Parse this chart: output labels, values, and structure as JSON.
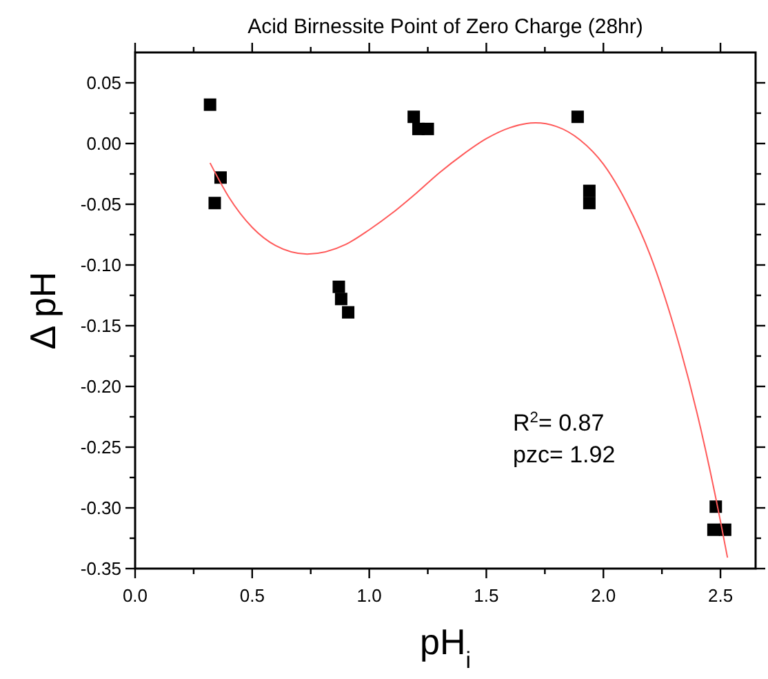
{
  "chart_data": {
    "type": "scatter",
    "title": "Acid Birnessite Point of Zero Charge (28hr)",
    "xlabel": "pH$_{i}$",
    "ylabel": "Δ pH",
    "grid": false,
    "xlim": [
      0,
      2.65
    ],
    "ylim": [
      -0.35,
      0.075
    ],
    "xticks": [
      {
        "value": 0,
        "label": "0.0"
      },
      {
        "value": 0.25,
        "label": null
      },
      {
        "value": 0.5,
        "label": "0.5"
      },
      {
        "value": 0.75,
        "label": null
      },
      {
        "value": 1,
        "label": "1.0"
      },
      {
        "value": 1.25,
        "label": null
      },
      {
        "value": 1.5,
        "label": "1.5"
      },
      {
        "value": 1.75,
        "label": null
      },
      {
        "value": 2,
        "label": "2.0"
      },
      {
        "value": 2.25,
        "label": null
      },
      {
        "value": 2.5,
        "label": "2.5"
      }
    ],
    "yticks": [
      {
        "value": -0.35,
        "label": "-0.35"
      },
      {
        "value": -0.325,
        "label": null
      },
      {
        "value": -0.3,
        "label": "-0.30"
      },
      {
        "value": -0.275,
        "label": null
      },
      {
        "value": -0.25,
        "label": "-0.25"
      },
      {
        "value": -0.225,
        "label": null
      },
      {
        "value": -0.2,
        "label": "-0.20"
      },
      {
        "value": -0.175,
        "label": null
      },
      {
        "value": -0.15,
        "label": "-0.15"
      },
      {
        "value": -0.125,
        "label": null
      },
      {
        "value": -0.1,
        "label": "-0.10"
      },
      {
        "value": -0.075,
        "label": null
      },
      {
        "value": -0.05,
        "label": "-0.05"
      },
      {
        "value": -0.025,
        "label": null
      },
      {
        "value": 0,
        "label": "0.00"
      },
      {
        "value": 0.025,
        "label": null
      },
      {
        "value": 0.05,
        "label": "0.05"
      }
    ],
    "annotations": [
      "R$^{2}$= 0.87",
      "pzc= 1.92"
    ],
    "series": [
      {
        "color": "#000000",
        "marker": "square",
        "x": [
          0.32,
          0.365,
          0.34,
          0.87,
          0.88,
          0.91,
          1.19,
          1.21,
          1.25,
          1.89,
          1.94,
          1.94,
          2.48,
          2.47,
          2.52
        ],
        "values": [
          0.032,
          -0.028,
          -0.049,
          -0.118,
          -0.128,
          -0.139,
          0.022,
          0.012,
          0.012,
          0.022,
          -0.039,
          -0.049,
          -0.299,
          -0.318,
          -0.318
        ]
      },
      {
        "type": "line",
        "color": "#ff5a5a",
        "marker": "none",
        "line_style": "solid",
        "x": [
          0.32,
          0.4,
          0.5,
          0.6,
          0.735,
          0.9,
          1.0,
          1.1,
          1.2,
          1.3,
          1.4,
          1.5,
          1.6,
          1.71,
          1.8,
          1.9,
          2.0,
          2.1,
          2.2,
          2.3,
          2.4,
          2.5,
          2.53
        ],
        "values": [
          -0.016,
          -0.044,
          -0.069,
          -0.084,
          -0.091,
          -0.083,
          -0.071,
          -0.057,
          -0.041,
          -0.024,
          -0.009,
          0.004,
          0.013,
          0.017,
          0.014,
          0.003,
          -0.017,
          -0.049,
          -0.092,
          -0.15,
          -0.222,
          -0.311,
          -0.341
        ]
      }
    ]
  }
}
